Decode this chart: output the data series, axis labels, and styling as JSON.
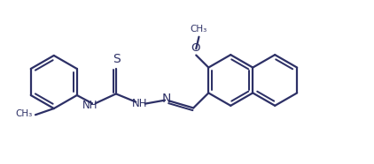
{
  "bg_color": "#ffffff",
  "line_color": "#2d3066",
  "line_width": 1.6,
  "figsize": [
    4.22,
    1.86
  ],
  "dpi": 100,
  "xlim": [
    0,
    10.5
  ],
  "ylim": [
    0,
    4.6
  ]
}
